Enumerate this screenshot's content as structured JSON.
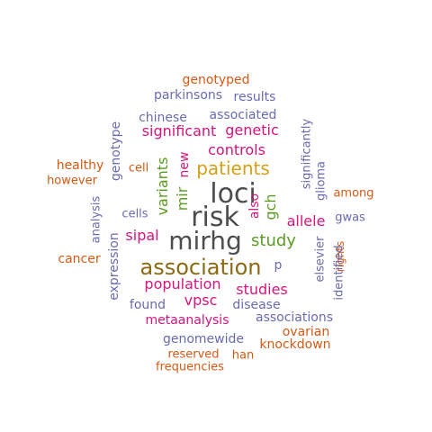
{
  "wordcloud": {
    "palette": {
      "dark": "#4d4d4d",
      "gold": "#8a6a14",
      "mustard": "#d4a018",
      "magenta": "#d4167c",
      "green": "#5a9a22",
      "orange": "#d45a14",
      "slate": "#6a6ab0"
    },
    "words": [
      {
        "text": "loci",
        "color": "dark",
        "rotate": 0
      },
      {
        "text": "risk",
        "color": "dark",
        "rotate": 0
      },
      {
        "text": "mirhg",
        "color": "dark",
        "rotate": 0
      },
      {
        "text": "association",
        "color": "gold",
        "rotate": 0
      },
      {
        "text": "patients",
        "color": "mustard",
        "rotate": 0
      },
      {
        "text": "study",
        "color": "green",
        "rotate": 0
      },
      {
        "text": "variants",
        "color": "green",
        "rotate": -90
      },
      {
        "text": "mir",
        "color": "green",
        "rotate": -90
      },
      {
        "text": "gch",
        "color": "green",
        "rotate": -90
      },
      {
        "text": "controls",
        "color": "magenta",
        "rotate": 0
      },
      {
        "text": "significant",
        "color": "magenta",
        "rotate": 0
      },
      {
        "text": "genetic",
        "color": "magenta",
        "rotate": 0
      },
      {
        "text": "new",
        "color": "magenta",
        "rotate": -90
      },
      {
        "text": "also",
        "color": "magenta",
        "rotate": -90
      },
      {
        "text": "allele",
        "color": "magenta",
        "rotate": 0
      },
      {
        "text": "sipal",
        "color": "magenta",
        "rotate": 0
      },
      {
        "text": "population",
        "color": "magenta",
        "rotate": 0
      },
      {
        "text": "studies",
        "color": "magenta",
        "rotate": 0
      },
      {
        "text": "vpsc",
        "color": "magenta",
        "rotate": 0
      },
      {
        "text": "metaanalysis",
        "color": "magenta",
        "rotate": 0
      },
      {
        "text": "genotyped",
        "color": "orange",
        "rotate": 0
      },
      {
        "text": "parkinsons",
        "color": "slate",
        "rotate": 0
      },
      {
        "text": "results",
        "color": "slate",
        "rotate": 0
      },
      {
        "text": "chinese",
        "color": "slate",
        "rotate": 0
      },
      {
        "text": "associated",
        "color": "slate",
        "rotate": 0
      },
      {
        "text": "significantly",
        "color": "slate",
        "rotate": -90
      },
      {
        "text": "genotype",
        "color": "slate",
        "rotate": -90
      },
      {
        "text": "healthy",
        "color": "orange",
        "rotate": 0
      },
      {
        "text": "cell",
        "color": "orange",
        "rotate": 0
      },
      {
        "text": "however",
        "color": "orange",
        "rotate": 0
      },
      {
        "text": "glioma",
        "color": "slate",
        "rotate": -90
      },
      {
        "text": "among",
        "color": "orange",
        "rotate": 0
      },
      {
        "text": "analysis",
        "color": "slate",
        "rotate": -90
      },
      {
        "text": "cells",
        "color": "slate",
        "rotate": 0
      },
      {
        "text": "gwas",
        "color": "slate",
        "rotate": 0
      },
      {
        "text": "elsevier",
        "color": "slate",
        "rotate": -90
      },
      {
        "text": "rights",
        "color": "orange",
        "rotate": -90
      },
      {
        "text": "cancer",
        "color": "orange",
        "rotate": 0
      },
      {
        "text": "expression",
        "color": "slate",
        "rotate": -90
      },
      {
        "text": "p",
        "color": "slate",
        "rotate": 0
      },
      {
        "text": "identified",
        "color": "slate",
        "rotate": -90
      },
      {
        "text": "found",
        "color": "slate",
        "rotate": 0
      },
      {
        "text": "disease",
        "color": "slate",
        "rotate": 0
      },
      {
        "text": "associations",
        "color": "slate",
        "rotate": 0
      },
      {
        "text": "ovarian",
        "color": "orange",
        "rotate": 0
      },
      {
        "text": "genomewide",
        "color": "slate",
        "rotate": 0
      },
      {
        "text": "knockdown",
        "color": "orange",
        "rotate": 0
      },
      {
        "text": "reserved",
        "color": "orange",
        "rotate": 0
      },
      {
        "text": "han",
        "color": "orange",
        "rotate": 0
      },
      {
        "text": "frequencies",
        "color": "orange",
        "rotate": 0
      }
    ]
  }
}
